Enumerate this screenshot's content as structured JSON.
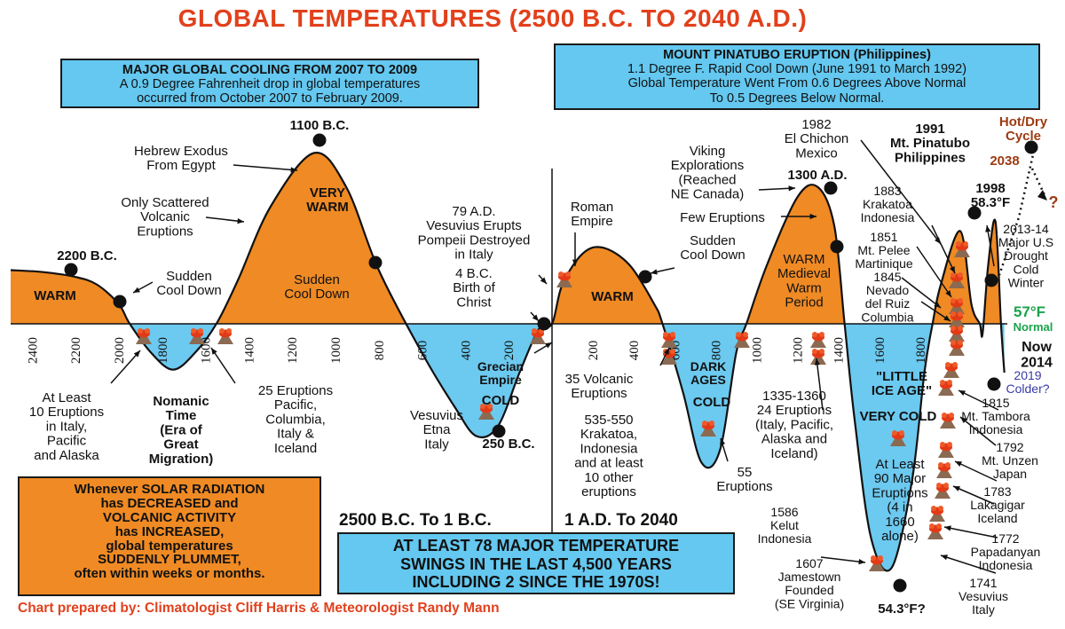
{
  "page": {
    "title": "GLOBAL TEMPERATURES (2500 B.C. TO 2040 A.D.)",
    "credit": "Chart prepared by: Climatologist Cliff Harris & Meteorologist Randy Mann"
  },
  "colors": {
    "warm": "#ef8a24",
    "cold": "#6cc9ef",
    "title": "#e2401c",
    "normal": "#1aa34a",
    "future": "#9c3b12",
    "cold_future": "#3a3aa8"
  },
  "boxes": {
    "cooling": {
      "lines": [
        "MAJOR GLOBAL COOLING FROM 2007 TO 2009",
        "A 0.9 Degree Fahrenheit drop in global temperatures",
        "occurred from October 2007 to February 2009."
      ]
    },
    "pinatubo": {
      "lines": [
        "MOUNT PINATUBO ERUPTION (Philippines)",
        "1.1 Degree F. Rapid Cool Down (June 1991 to March 1992)",
        "Global Temperature Went From 0.6 Degrees Above Normal",
        "To 0.5 Degrees Below Normal."
      ]
    },
    "solar": {
      "lines": [
        "Whenever SOLAR RADIATION",
        "has DECREASED and",
        "VOLCANIC ACTIVITY",
        "has INCREASED,",
        "global temperatures",
        "SUDDENLY PLUMMET,",
        "often within weeks or months."
      ]
    },
    "swings": {
      "lines": [
        "AT LEAST 78 MAJOR TEMPERATURE",
        "SWINGS IN THE LAST 4,500 YEARS",
        "INCLUDING 2 SINCE THE 1970S!"
      ]
    }
  },
  "periods": {
    "bc": "2500 B.C. To 1 B.C.",
    "ad": "1 A.D. To 2040"
  },
  "chart_data": {
    "type": "line",
    "title": "GLOBAL TEMPERATURES (2500 B.C. TO 2040 A.D.)",
    "x_ticks_bc": [
      "2400",
      "2200",
      "2000",
      "1800",
      "1600",
      "1400",
      "1200",
      "1000",
      "800",
      "600",
      "400",
      "200"
    ],
    "x_ticks_ad": [
      "200",
      "400",
      "600",
      "800",
      "1000",
      "1200",
      "1400",
      "1600",
      "1800"
    ],
    "baseline_label": "57°F",
    "baseline_sublabel": "Normal",
    "series": [
      {
        "values": [
          {
            "x": -2500,
            "y": 0.55
          },
          {
            "x": -2350,
            "y": 0.53
          },
          {
            "x": -2200,
            "y": 0.48
          },
          {
            "x": -2100,
            "y": 0.4
          },
          {
            "x": -2000,
            "y": 0.2
          },
          {
            "x": -1950,
            "y": 0.0
          },
          {
            "x": -1850,
            "y": -0.3
          },
          {
            "x": -1750,
            "y": -0.47
          },
          {
            "x": -1650,
            "y": -0.3
          },
          {
            "x": -1550,
            "y": 0.0
          },
          {
            "x": -1450,
            "y": 0.45
          },
          {
            "x": -1300,
            "y": 1.2
          },
          {
            "x": -1100,
            "y": 1.75
          },
          {
            "x": -950,
            "y": 1.4
          },
          {
            "x": -800,
            "y": 0.55
          },
          {
            "x": -600,
            "y": -0.3
          },
          {
            "x": -450,
            "y": -0.85
          },
          {
            "x": -350,
            "y": -1.15
          },
          {
            "x": -250,
            "y": -1.05
          },
          {
            "x": -150,
            "y": -0.5
          },
          {
            "x": -60,
            "y": -0.05
          },
          {
            "x": 0,
            "y": 0.0
          },
          {
            "x": 50,
            "y": 0.4
          },
          {
            "x": 150,
            "y": 0.72
          },
          {
            "x": 250,
            "y": 0.78
          },
          {
            "x": 380,
            "y": 0.6
          },
          {
            "x": 500,
            "y": 0.2
          },
          {
            "x": 540,
            "y": 0.0
          },
          {
            "x": 640,
            "y": -0.7
          },
          {
            "x": 730,
            "y": -1.42
          },
          {
            "x": 820,
            "y": -1.3
          },
          {
            "x": 900,
            "y": -0.3
          },
          {
            "x": 950,
            "y": 0.0
          },
          {
            "x": 1050,
            "y": 0.6
          },
          {
            "x": 1200,
            "y": 1.3
          },
          {
            "x": 1300,
            "y": 1.4
          },
          {
            "x": 1380,
            "y": 1.0
          },
          {
            "x": 1430,
            "y": 0.0
          },
          {
            "x": 1480,
            "y": -1.0
          },
          {
            "x": 1560,
            "y": -2.2
          },
          {
            "x": 1660,
            "y": -2.5
          },
          {
            "x": 1760,
            "y": -1.6
          },
          {
            "x": 1820,
            "y": -0.5
          },
          {
            "x": 1860,
            "y": 0.0
          },
          {
            "x": 1900,
            "y": 0.4
          },
          {
            "x": 1935,
            "y": 0.95
          },
          {
            "x": 1955,
            "y": 0.2
          },
          {
            "x": 1970,
            "y": 0.0
          },
          {
            "x": 1975,
            "y": -0.1
          },
          {
            "x": 1985,
            "y": 0.6
          },
          {
            "x": 1998,
            "y": 1.05
          },
          {
            "x": 2008,
            "y": 0.0
          },
          {
            "x": 2014,
            "y": -0.5
          }
        ]
      }
    ],
    "regions": [
      {
        "label": "WARM",
        "kind": "warm"
      },
      {
        "label": "Nomanic Time (Era of Great Migration)",
        "kind": "cold"
      },
      {
        "label": "VERY WARM",
        "kind": "warm"
      },
      {
        "label": "Grecian Empire COLD",
        "kind": "cold"
      },
      {
        "label": "WARM",
        "kind": "warm"
      },
      {
        "label": "DARK AGES COLD",
        "kind": "cold"
      },
      {
        "label": "WARM Medieval Warm Period",
        "kind": "warm"
      },
      {
        "label": "\"LITTLE ICE AGE\" VERY COLD",
        "kind": "cold"
      }
    ],
    "key_points": [
      {
        "label": "2200 B.C.",
        "x": -2200,
        "y": 0.48
      },
      {
        "label": "1100 B.C.",
        "x": -1100,
        "y": 1.75
      },
      {
        "label": "250 B.C.",
        "x": -250,
        "y": -1.05
      },
      {
        "label": "1300 A.D.",
        "x": 1300,
        "y": 1.4
      },
      {
        "label": "1998 58.3°F",
        "x": 1998,
        "y": 1.05
      },
      {
        "label": "54.3°F?",
        "x": 1660,
        "y": -2.5
      },
      {
        "label": "2038",
        "x": 2038,
        "y": 0.8
      }
    ]
  },
  "labels": {
    "warm1": "WARM",
    "sudden1": [
      "Sudden",
      "Cool Down"
    ],
    "p2200": "2200 B.C.",
    "nomanic": [
      "Nomanic",
      "Time",
      "(Era of",
      "Great",
      "Migration)"
    ],
    "italy10": [
      "At Least",
      "10 Eruptions",
      "in Italy,",
      "Pacific",
      "and Alaska"
    ],
    "e25": [
      "25 Eruptions",
      "Pacific,",
      "Columbia,",
      "Italy &",
      "Iceland"
    ],
    "scattered": [
      "Only Scattered",
      "Volcanic",
      "Eruptions"
    ],
    "hebrew": [
      "Hebrew Exodus",
      "From Egypt"
    ],
    "p1100": "1100 B.C.",
    "verywarm": [
      "VERY",
      "WARM"
    ],
    "sudden2": [
      "Sudden",
      "Cool Down"
    ],
    "vesuvius79": [
      "79 A.D.",
      "Vesuvius Erupts",
      "Pompeii Destroyed",
      "in Italy"
    ],
    "christ": [
      "4 B.C.",
      "Birth of",
      "Christ"
    ],
    "grecian": [
      "Grecian",
      "Empire"
    ],
    "cold": "COLD",
    "etna": [
      "Vesuvius",
      "Etna",
      "Italy"
    ],
    "p250": "250 B.C.",
    "roman": [
      "Roman",
      "Empire"
    ],
    "warm2": "WARM",
    "e35": [
      "35 Volcanic",
      "Eruptions"
    ],
    "krakatoa535": [
      "535-550",
      "Krakatoa,",
      "Indonesia",
      "and at least",
      "10 other",
      "eruptions"
    ],
    "darkages": [
      "DARK",
      "AGES"
    ],
    "cold2": "COLD",
    "e55": [
      "55",
      "Eruptions"
    ],
    "viking": [
      "Viking",
      "Explorations",
      "(Reached",
      "NE Canada)"
    ],
    "few": "Few Eruptions",
    "sudden3": [
      "Sudden",
      "Cool Down"
    ],
    "p1300": "1300 A.D.",
    "medieval": [
      "WARM",
      "Medieval",
      "Warm",
      "Period"
    ],
    "e1335": [
      "1335-1360",
      "24 Eruptions",
      "(Italy, Pacific,",
      "Alaska and",
      "Iceland)"
    ],
    "lia": [
      "\"LITTLE",
      "ICE AGE\""
    ],
    "verycold": "VERY COLD",
    "e90": [
      "At Least",
      "90 Major",
      "Eruptions",
      "(4 in",
      "1660",
      "alone)"
    ],
    "kelut": [
      "1586",
      "Kelut",
      "Indonesia"
    ],
    "jamestown": [
      "1607",
      "Jamestown",
      "Founded",
      "(SE Virginia)"
    ],
    "p543": "54.3°F?",
    "elchichon": [
      "1982",
      "El Chichon",
      "Mexico"
    ],
    "pinatubo": [
      "1991",
      "Mt. Pinatubo",
      "Philippines"
    ],
    "krakatoa1883": [
      "1883",
      "Krakatoa",
      "Indonesia"
    ],
    "pelee": [
      "1851",
      "Mt. Pelee",
      "Martinique"
    ],
    "ruiz": [
      "1845",
      "Nevado",
      "del Ruiz",
      "Columbia"
    ],
    "tambora": [
      "1815",
      "Mt. Tambora",
      "Indonesia"
    ],
    "unzen": [
      "1792",
      "Mt. Unzen",
      "Japan"
    ],
    "laki": [
      "1783",
      "Lakagigar",
      "Iceland"
    ],
    "papandayan": [
      "1772",
      "Papadanyan",
      "Indonesia"
    ],
    "vesuvius1741": [
      "1741",
      "Vesuvius",
      "Italy"
    ],
    "p1998": [
      "1998",
      "58.3°F"
    ],
    "hotdry": [
      "Hot/Dry",
      "Cycle"
    ],
    "p2038": "2038",
    "question": "?",
    "drought": [
      "2013-14",
      "Major U.S",
      "Drought",
      "Cold",
      "Winter"
    ],
    "normalF": "57°F",
    "normalW": "Normal",
    "now": [
      "Now",
      "2014"
    ],
    "colder": [
      "2019",
      "Colder?"
    ]
  }
}
